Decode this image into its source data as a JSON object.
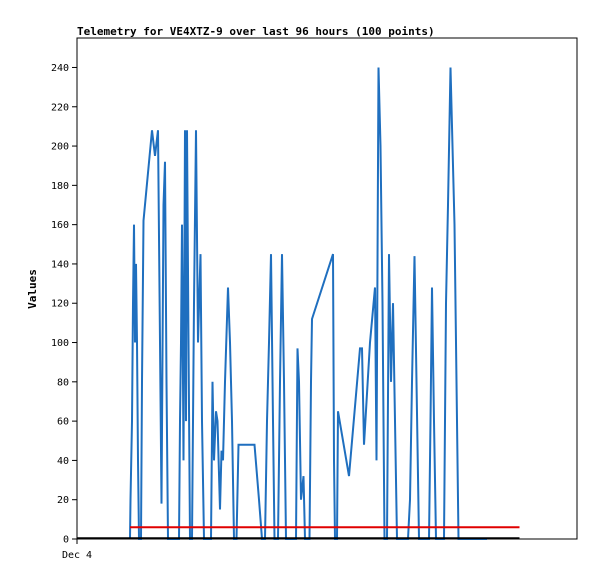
{
  "chart_data": {
    "type": "line",
    "title": "Telemetry for VE4XTZ-9 over last 96 hours (100 points)",
    "xlabel": "",
    "ylabel": "Values",
    "x_tick_labels": [
      "Dec 4"
    ],
    "y_ticks": [
      0,
      20,
      40,
      60,
      80,
      100,
      120,
      140,
      160,
      180,
      200,
      220,
      240
    ],
    "ylim": [
      0,
      255
    ],
    "xlim": [
      0,
      100
    ],
    "grid": false,
    "legend": "none",
    "colors": {
      "blue": "#1f6fbf",
      "red": "#e00000",
      "black": "#000000"
    },
    "series": [
      {
        "color": "#1f6fbf",
        "points": [
          [
            10.6,
            0
          ],
          [
            10.7,
            20
          ],
          [
            11.0,
            60
          ],
          [
            11.2,
            120
          ],
          [
            11.4,
            160
          ],
          [
            11.6,
            100
          ],
          [
            11.8,
            140
          ],
          [
            12.0,
            100
          ],
          [
            12.2,
            40
          ],
          [
            12.4,
            0
          ],
          [
            12.8,
            0
          ],
          [
            13.0,
            80
          ],
          [
            13.3,
            162
          ],
          [
            15.0,
            208
          ],
          [
            15.6,
            195
          ],
          [
            16.2,
            208
          ],
          [
            16.6,
            100
          ],
          [
            16.9,
            18
          ],
          [
            17.3,
            170
          ],
          [
            17.6,
            192
          ],
          [
            17.9,
            80
          ],
          [
            18.2,
            0
          ],
          [
            20.4,
            0
          ],
          [
            20.6,
            60
          ],
          [
            20.8,
            100
          ],
          [
            21.0,
            160
          ],
          [
            21.3,
            40
          ],
          [
            21.6,
            208
          ],
          [
            21.8,
            60
          ],
          [
            22.0,
            208
          ],
          [
            22.3,
            100
          ],
          [
            22.6,
            0
          ],
          [
            23.0,
            0
          ],
          [
            23.4,
            120
          ],
          [
            23.8,
            208
          ],
          [
            24.2,
            100
          ],
          [
            24.7,
            145
          ],
          [
            25.0,
            60
          ],
          [
            25.4,
            0
          ],
          [
            26.8,
            0
          ],
          [
            27.1,
            80
          ],
          [
            27.4,
            40
          ],
          [
            27.8,
            65
          ],
          [
            28.1,
            60
          ],
          [
            28.6,
            15
          ],
          [
            28.9,
            45
          ],
          [
            29.2,
            40
          ],
          [
            29.6,
            80
          ],
          [
            30.2,
            128
          ],
          [
            30.6,
            100
          ],
          [
            31.0,
            60
          ],
          [
            31.4,
            0
          ],
          [
            31.9,
            0
          ],
          [
            32.3,
            48
          ],
          [
            35.5,
            48
          ],
          [
            36.4,
            20
          ],
          [
            37.0,
            0
          ],
          [
            37.6,
            0
          ],
          [
            38.0,
            60
          ],
          [
            38.4,
            100
          ],
          [
            38.8,
            145
          ],
          [
            39.2,
            60
          ],
          [
            39.5,
            0
          ],
          [
            40.2,
            0
          ],
          [
            40.6,
            80
          ],
          [
            41.0,
            145
          ],
          [
            41.4,
            80
          ],
          [
            41.8,
            0
          ],
          [
            43.8,
            0
          ],
          [
            44.1,
            97
          ],
          [
            44.4,
            80
          ],
          [
            44.8,
            20
          ],
          [
            45.3,
            32
          ],
          [
            45.6,
            0
          ],
          [
            46.5,
            0
          ],
          [
            46.8,
            80
          ],
          [
            47.0,
            112
          ],
          [
            51.2,
            145
          ],
          [
            51.4,
            40
          ],
          [
            51.6,
            0
          ],
          [
            52.0,
            0
          ],
          [
            52.2,
            65
          ],
          [
            54.4,
            32
          ],
          [
            56.6,
            97
          ],
          [
            57.0,
            97
          ],
          [
            57.4,
            48
          ],
          [
            58.6,
            100
          ],
          [
            59.6,
            128
          ],
          [
            59.9,
            40
          ],
          [
            60.3,
            240
          ],
          [
            60.7,
            200
          ],
          [
            61.1,
            120
          ],
          [
            61.5,
            0
          ],
          [
            62.0,
            0
          ],
          [
            62.4,
            145
          ],
          [
            62.8,
            80
          ],
          [
            63.2,
            120
          ],
          [
            63.6,
            60
          ],
          [
            64.0,
            0
          ],
          [
            66.2,
            0
          ],
          [
            66.6,
            20
          ],
          [
            67.0,
            80
          ],
          [
            67.5,
            144
          ],
          [
            67.9,
            80
          ],
          [
            68.4,
            0
          ],
          [
            70.4,
            0
          ],
          [
            70.7,
            60
          ],
          [
            71.0,
            128
          ],
          [
            71.4,
            60
          ],
          [
            71.8,
            0
          ],
          [
            73.4,
            0
          ],
          [
            73.8,
            120
          ],
          [
            74.2,
            170
          ],
          [
            74.7,
            240
          ],
          [
            75.1,
            200
          ],
          [
            75.5,
            160
          ],
          [
            75.9,
            80
          ],
          [
            76.3,
            0
          ],
          [
            82.0,
            0
          ]
        ]
      },
      {
        "color": "#e00000",
        "points": [
          [
            10.6,
            6
          ],
          [
            88.5,
            6
          ]
        ]
      },
      {
        "color": "#000000",
        "points": [
          [
            0,
            0.4
          ],
          [
            88.5,
            0.4
          ]
        ]
      }
    ]
  }
}
